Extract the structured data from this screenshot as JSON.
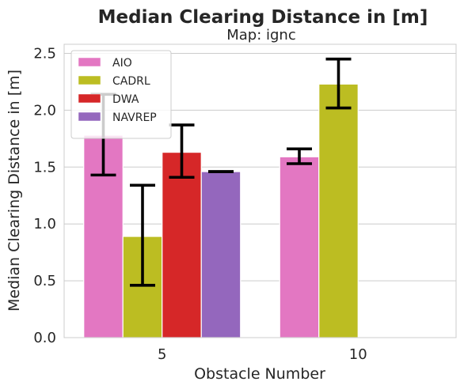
{
  "chart_data": {
    "type": "bar",
    "title": "Median Clearing Distance in [m]",
    "subtitle": "Map: ignc",
    "xlabel": "Obstacle Number",
    "ylabel": "Median Clearing Distance in [m]",
    "categories": [
      "5",
      "10"
    ],
    "ylim": [
      0,
      2.58
    ],
    "yticks": [
      0.0,
      0.5,
      1.0,
      1.5,
      2.0,
      2.5
    ],
    "ytick_labels": [
      "0.0",
      "0.5",
      "1.0",
      "1.5",
      "2.0",
      "2.5"
    ],
    "grid": true,
    "legend_position": "top-left",
    "series": [
      {
        "name": "AIO",
        "color": "#e377c2",
        "values": [
          1.78,
          1.59
        ],
        "err_low": [
          1.43,
          1.53
        ],
        "err_high": [
          2.14,
          1.66
        ]
      },
      {
        "name": "CADRL",
        "color": "#bcbd22",
        "values": [
          0.89,
          2.23
        ],
        "err_low": [
          0.46,
          2.02
        ],
        "err_high": [
          1.34,
          2.45
        ]
      },
      {
        "name": "DWA",
        "color": "#d62728",
        "values": [
          1.63,
          null
        ],
        "err_low": [
          1.41,
          null
        ],
        "err_high": [
          1.87,
          null
        ]
      },
      {
        "name": "NAVREP",
        "color": "#9467bd",
        "values": [
          1.46,
          null
        ],
        "err_low": [
          1.46,
          null
        ],
        "err_high": [
          1.46,
          null
        ]
      }
    ]
  }
}
